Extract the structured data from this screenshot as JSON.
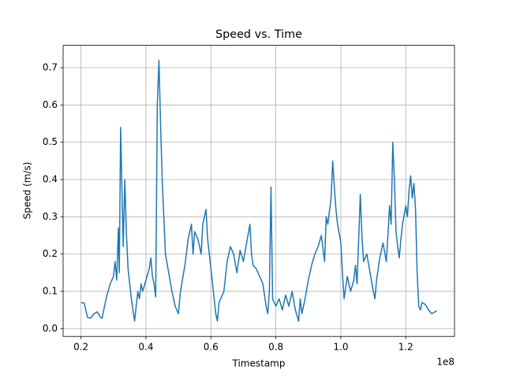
{
  "chart_data": {
    "type": "line",
    "title": "Speed vs. Time",
    "x_label": "Timestamp",
    "y_label": "Speed (m/s)",
    "x_offset_label": "1e8",
    "color": "#1f77b4",
    "grid": true,
    "xlim": [
      0.145,
      1.35
    ],
    "ylim": [
      -0.021,
      0.76
    ],
    "xticks": [
      0.2,
      0.4,
      0.6,
      0.8,
      {
        "value": 1.0,
        "label": "1.0"
      },
      1.2
    ],
    "yticks": [
      {
        "value": 0,
        "label": "0.0"
      },
      0.1,
      0.2,
      0.3,
      0.4,
      0.5,
      0.6,
      0.7
    ],
    "x": [
      0.2,
      0.21,
      0.215,
      0.22,
      0.23,
      0.24,
      0.25,
      0.26,
      0.265,
      0.27,
      0.28,
      0.29,
      0.3,
      0.305,
      0.31,
      0.315,
      0.318,
      0.322,
      0.326,
      0.33,
      0.335,
      0.34,
      0.345,
      0.35,
      0.355,
      0.36,
      0.365,
      0.37,
      0.375,
      0.38,
      0.385,
      0.39,
      0.4,
      0.41,
      0.415,
      0.42,
      0.425,
      0.43,
      0.435,
      0.44,
      0.445,
      0.45,
      0.455,
      0.46,
      0.47,
      0.48,
      0.49,
      0.5,
      0.505,
      0.51,
      0.52,
      0.53,
      0.54,
      0.545,
      0.55,
      0.56,
      0.57,
      0.575,
      0.58,
      0.585,
      0.59,
      0.6,
      0.605,
      0.61,
      0.615,
      0.62,
      0.625,
      0.63,
      0.64,
      0.65,
      0.66,
      0.67,
      0.68,
      0.69,
      0.7,
      0.71,
      0.72,
      0.725,
      0.73,
      0.74,
      0.75,
      0.76,
      0.77,
      0.775,
      0.78,
      0.785,
      0.79,
      0.8,
      0.81,
      0.82,
      0.83,
      0.84,
      0.85,
      0.86,
      0.87,
      0.875,
      0.88,
      0.89,
      0.9,
      0.91,
      0.92,
      0.93,
      0.94,
      0.95,
      0.955,
      0.96,
      0.97,
      0.975,
      0.98,
      0.985,
      0.99,
      1.0,
      1.005,
      1.01,
      1.02,
      1.03,
      1.04,
      1.045,
      1.05,
      1.055,
      1.06,
      1.065,
      1.07,
      1.08,
      1.09,
      1.1,
      1.105,
      1.11,
      1.12,
      1.13,
      1.14,
      1.145,
      1.15,
      1.155,
      1.16,
      1.165,
      1.17,
      1.175,
      1.18,
      1.185,
      1.19,
      1.2,
      1.205,
      1.21,
      1.215,
      1.22,
      1.225,
      1.23,
      1.235,
      1.24,
      1.245,
      1.25,
      1.26,
      1.27,
      1.28,
      1.29,
      1.295
    ],
    "values": [
      0.07,
      0.068,
      0.05,
      0.03,
      0.028,
      0.04,
      0.045,
      0.03,
      0.028,
      0.05,
      0.09,
      0.12,
      0.14,
      0.18,
      0.13,
      0.27,
      0.15,
      0.54,
      0.38,
      0.22,
      0.4,
      0.25,
      0.16,
      0.12,
      0.08,
      0.05,
      0.02,
      0.06,
      0.1,
      0.08,
      0.12,
      0.1,
      0.13,
      0.16,
      0.19,
      0.14,
      0.12,
      0.085,
      0.6,
      0.72,
      0.55,
      0.4,
      0.3,
      0.2,
      0.15,
      0.1,
      0.06,
      0.04,
      0.09,
      0.12,
      0.17,
      0.24,
      0.28,
      0.2,
      0.26,
      0.24,
      0.2,
      0.28,
      0.3,
      0.32,
      0.24,
      0.16,
      0.12,
      0.08,
      0.04,
      0.02,
      0.07,
      0.08,
      0.1,
      0.18,
      0.22,
      0.2,
      0.15,
      0.21,
      0.18,
      0.23,
      0.28,
      0.2,
      0.17,
      0.16,
      0.14,
      0.12,
      0.06,
      0.04,
      0.1,
      0.38,
      0.08,
      0.06,
      0.08,
      0.05,
      0.09,
      0.06,
      0.1,
      0.05,
      0.02,
      0.08,
      0.04,
      0.08,
      0.13,
      0.17,
      0.2,
      0.22,
      0.25,
      0.18,
      0.3,
      0.28,
      0.35,
      0.45,
      0.38,
      0.32,
      0.28,
      0.23,
      0.15,
      0.08,
      0.14,
      0.1,
      0.13,
      0.17,
      0.12,
      0.24,
      0.36,
      0.25,
      0.18,
      0.2,
      0.15,
      0.1,
      0.08,
      0.13,
      0.19,
      0.23,
      0.18,
      0.25,
      0.33,
      0.28,
      0.5,
      0.4,
      0.26,
      0.22,
      0.19,
      0.24,
      0.28,
      0.33,
      0.3,
      0.37,
      0.41,
      0.35,
      0.39,
      0.32,
      0.15,
      0.06,
      0.05,
      0.07,
      0.065,
      0.05,
      0.04,
      0.045,
      0.048
    ]
  }
}
